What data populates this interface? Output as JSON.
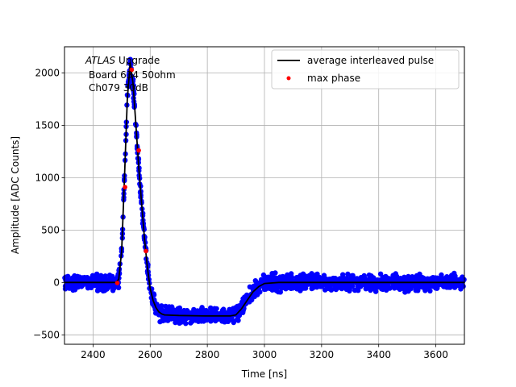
{
  "chart_data": {
    "type": "scatter",
    "title": "",
    "xlabel": "Time [ns]",
    "ylabel": "Amplitude [ADC Counts]",
    "xlim": [
      2300,
      3700
    ],
    "ylim": [
      -590,
      2250
    ],
    "grid": true,
    "legend_position": "top-right",
    "x_ticks": [
      2400,
      2600,
      2800,
      3000,
      3200,
      3400,
      3600
    ],
    "y_ticks": [
      -500,
      0,
      500,
      1000,
      1500,
      2000
    ],
    "annotation": {
      "line1_italic": "ATLAS",
      "line1_rest": " Upgrade",
      "line2": "Board 634 50ohm",
      "line3": "Ch079 30dB"
    },
    "series": [
      {
        "name": "",
        "kind": "scatter-band",
        "color": "#0000ff",
        "noise_halfwidth": 65,
        "x_range": [
          2300,
          3700
        ]
      },
      {
        "name": "average interleaved pulse",
        "kind": "line",
        "color": "#000000",
        "x": [
          2300,
          2480,
          2490,
          2500,
          2510,
          2520,
          2530,
          2540,
          2550,
          2560,
          2570,
          2580,
          2590,
          2600,
          2610,
          2620,
          2630,
          2640,
          2650,
          2700,
          2800,
          2880,
          2900,
          2920,
          2940,
          2960,
          2980,
          3000,
          3050,
          3200,
          3700
        ],
        "y": [
          0,
          0,
          30,
          300,
          1000,
          1750,
          2100,
          1900,
          1500,
          1100,
          750,
          420,
          150,
          -60,
          -170,
          -240,
          -280,
          -300,
          -310,
          -315,
          -320,
          -320,
          -310,
          -250,
          -170,
          -90,
          -40,
          -10,
          0,
          0,
          0
        ]
      },
      {
        "name": "max phase",
        "kind": "scatter",
        "color": "#ff0000",
        "x": [
          2485,
          2512,
          2535,
          2560,
          2585
        ],
        "y": [
          -5,
          910,
          2030,
          1260,
          300
        ]
      }
    ]
  }
}
